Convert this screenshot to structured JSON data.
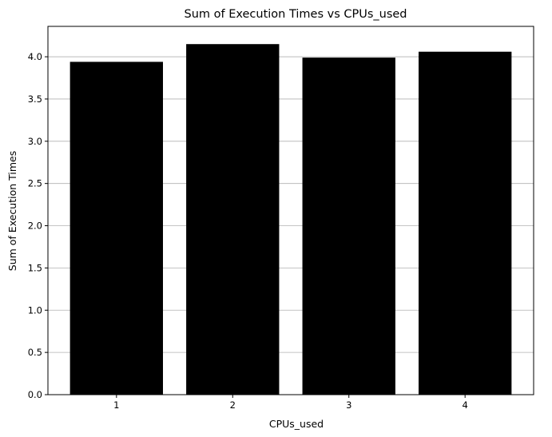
{
  "chart_data": {
    "type": "bar",
    "title": "Sum of Execution Times vs CPUs_used",
    "xlabel": "CPUs_used",
    "ylabel": "Sum of Execution Times",
    "categories": [
      "1",
      "2",
      "3",
      "4"
    ],
    "values": [
      3.94,
      4.15,
      3.99,
      4.06
    ],
    "ylim": [
      0,
      4.36
    ],
    "yticks": [
      "0.0",
      "0.5",
      "1.0",
      "1.5",
      "2.0",
      "2.5",
      "3.0",
      "3.5",
      "4.0"
    ],
    "grid": "y-axis horizontal lines",
    "bar_color": "#000000",
    "grid_color": "#b0b0b0"
  }
}
